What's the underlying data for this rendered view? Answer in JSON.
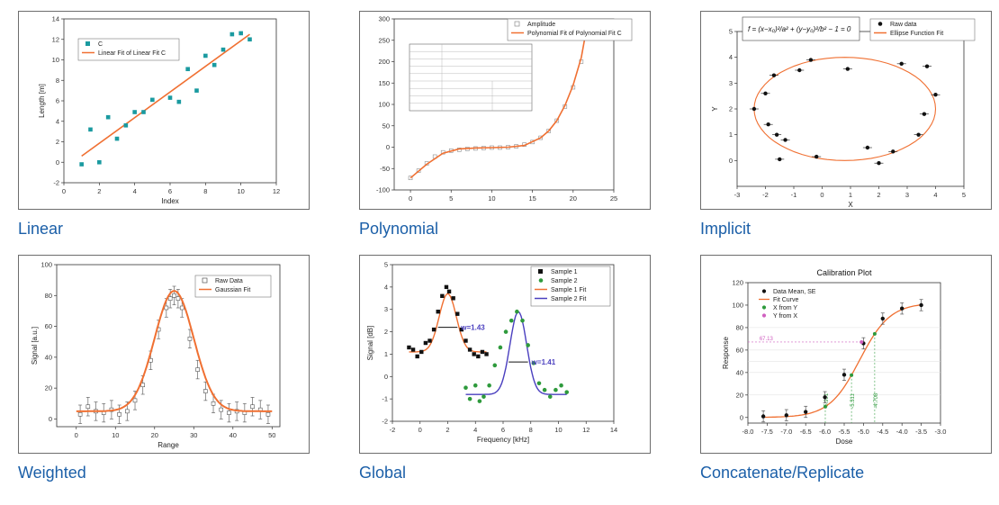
{
  "colors": {
    "caption": "#1b5fa8",
    "fit": "#f07032",
    "sq": "#1a9aa0",
    "black": "#111111",
    "green": "#2e9a3c",
    "purple": "#4a3fbf",
    "grey": "#8c8c8c",
    "pink": "#d060c0"
  },
  "captions": [
    "Linear",
    "Polynomial",
    "Implicit",
    "Weighted",
    "Global",
    "Concatenate/Replicate"
  ],
  "chart_data": [
    {
      "type": "scatter",
      "xlabel": "Index",
      "ylabel": "Length [m]",
      "xlim": [
        0,
        12
      ],
      "ylim": [
        -2,
        14
      ],
      "xticks": [
        "0",
        "2",
        "4",
        "6",
        "8",
        "10",
        "12"
      ],
      "yticks": [
        "-2",
        "0",
        "2",
        "4",
        "6",
        "8",
        "10",
        "12",
        "14"
      ],
      "legend": [
        "C",
        "Linear Fit of Linear Fit C"
      ],
      "series": [
        {
          "name": "C",
          "x": [
            1,
            1.5,
            2,
            2.5,
            3,
            3.5,
            4,
            4.5,
            5,
            6,
            6.5,
            7,
            7.5,
            8,
            8.5,
            9,
            9.5,
            10,
            10.5
          ],
          "y": [
            -0.2,
            3.2,
            0.0,
            4.4,
            2.3,
            3.6,
            4.9,
            4.9,
            6.1,
            6.3,
            5.9,
            9.1,
            7.0,
            10.4,
            9.5,
            11.0,
            12.5,
            12.6,
            12.0
          ]
        }
      ],
      "fit": {
        "name": "Linear Fit of Linear Fit C",
        "x": [
          1,
          10.5
        ],
        "y": [
          0.6,
          12.5
        ]
      },
      "legend_position": "top-left"
    },
    {
      "type": "scatter",
      "xlim": [
        -2,
        25
      ],
      "ylim": [
        -100,
        300
      ],
      "xticks": [
        "0",
        "5",
        "10",
        "15",
        "20",
        "25"
      ],
      "yticks": [
        "-100",
        "-50",
        "0",
        "50",
        "100",
        "150",
        "200",
        "250",
        "300"
      ],
      "legend": [
        "Amplitude",
        "Polynomial Fit of Polynomial Fit C"
      ],
      "series": [
        {
          "name": "Amplitude",
          "x": [
            0,
            1,
            2,
            3,
            4,
            5,
            6,
            7,
            8,
            9,
            10,
            11,
            12,
            13,
            14,
            15,
            16,
            17,
            18,
            19,
            20,
            21,
            21.5
          ],
          "y": [
            -72,
            -55,
            -38,
            -22,
            -12,
            -8,
            -6,
            -4,
            -3,
            -2,
            -1,
            -1,
            0,
            2,
            6,
            12,
            22,
            38,
            62,
            95,
            140,
            200,
            255
          ]
        }
      ],
      "fit": {
        "name": "Polynomial Fit of Polynomial Fit C",
        "x": [
          0,
          2,
          4,
          6,
          8,
          10,
          12,
          14,
          16,
          17,
          18,
          19,
          20,
          21,
          21.5
        ],
        "y": [
          -72,
          -40,
          -14,
          -4,
          -2,
          -1,
          0,
          4,
          22,
          38,
          62,
          98,
          145,
          210,
          262
        ]
      },
      "legend_position": "top-right"
    },
    {
      "type": "scatter",
      "xlabel": "X",
      "ylabel": "Y",
      "xlim": [
        -3,
        5
      ],
      "ylim": [
        -1,
        5
      ],
      "xticks": [
        "-3",
        "-2",
        "-1",
        "0",
        "1",
        "2",
        "3",
        "4",
        "5"
      ],
      "yticks": [
        "0",
        "1",
        "2",
        "3",
        "4",
        "5"
      ],
      "legend": [
        "Raw data",
        "Ellipse Function Fit"
      ],
      "series": [
        {
          "name": "Raw data",
          "x": [
            -2.4,
            -2.0,
            -1.7,
            -1.5,
            -1.9,
            -1.6,
            -1.3,
            -0.8,
            -0.4,
            -0.2,
            0.9,
            1.6,
            2.0,
            2.5,
            2.8,
            3.4,
            3.6,
            3.7,
            4.0
          ],
          "y": [
            2.0,
            2.6,
            3.3,
            0.05,
            1.4,
            1.0,
            0.8,
            3.5,
            3.9,
            0.15,
            3.55,
            0.5,
            -0.1,
            0.35,
            3.75,
            1.0,
            1.8,
            3.65,
            2.55
          ]
        }
      ],
      "fit": {
        "name": "Ellipse Function Fit",
        "cx": 0.8,
        "cy": 2.0,
        "rx": 3.2,
        "ry": 2.0
      },
      "legend_position": "top-right"
    },
    {
      "type": "scatter",
      "xlabel": "Range",
      "ylabel": "Signal [a.u.]",
      "xlim": [
        -5,
        52
      ],
      "ylim": [
        -5,
        100
      ],
      "xticks": [
        "0",
        "10",
        "20",
        "30",
        "40",
        "50"
      ],
      "yticks": [
        "0",
        "20",
        "40",
        "60",
        "80",
        "100"
      ],
      "legend": [
        "Raw Data",
        "Gaussian Fit"
      ],
      "series": [
        {
          "name": "Raw Data",
          "x": [
            1,
            3,
            5,
            7,
            9,
            11,
            13,
            15,
            17,
            19,
            21,
            23,
            24,
            25,
            26,
            27,
            29,
            31,
            33,
            35,
            37,
            39,
            41,
            43,
            45,
            47,
            49
          ],
          "y": [
            3,
            8,
            5,
            4,
            6,
            3,
            5,
            12,
            22,
            38,
            58,
            72,
            78,
            80,
            78,
            72,
            52,
            32,
            18,
            10,
            6,
            4,
            5,
            4,
            8,
            6,
            3
          ]
        }
      ],
      "fit": {
        "name": "Gaussian Fit",
        "center": 25,
        "amp": 78,
        "width": 5,
        "base": 5
      },
      "legend_position": "top-right"
    },
    {
      "type": "scatter",
      "xlabel": "Frequency [kHz]",
      "ylabel": "Signal [dB]",
      "xlim": [
        -2,
        14
      ],
      "ylim": [
        -2,
        5
      ],
      "xticks": [
        "-2",
        "0",
        "2",
        "4",
        "6",
        "8",
        "10",
        "12",
        "14"
      ],
      "yticks": [
        "-2",
        "-1",
        "0",
        "1",
        "2",
        "3",
        "4",
        "5"
      ],
      "legend": [
        "Sample 1",
        "Sample 2",
        "Sample 1 Fit",
        "Sample 2 Fit"
      ],
      "annotations": [
        "w=1.43",
        "w=1.41"
      ],
      "series": [
        {
          "name": "Sample 1",
          "x": [
            -0.8,
            -0.5,
            -0.2,
            0.1,
            0.4,
            0.7,
            1.0,
            1.3,
            1.6,
            1.9,
            2.1,
            2.4,
            2.7,
            3.0,
            3.3,
            3.6,
            3.9,
            4.2,
            4.5,
            4.8
          ],
          "y": [
            1.3,
            1.2,
            0.9,
            1.1,
            1.5,
            1.6,
            2.1,
            2.9,
            3.6,
            4.0,
            3.8,
            3.5,
            2.8,
            2.1,
            1.6,
            1.2,
            1.0,
            0.9,
            1.1,
            1.0
          ]
        },
        {
          "name": "Sample 2",
          "x": [
            3.3,
            3.6,
            4.0,
            4.3,
            4.6,
            5.0,
            5.4,
            5.8,
            6.2,
            6.6,
            7.0,
            7.4,
            7.8,
            8.2,
            8.6,
            9.0,
            9.4,
            9.8,
            10.2,
            10.6
          ],
          "y": [
            -0.5,
            -1.0,
            -0.4,
            -1.1,
            -0.9,
            -0.4,
            0.5,
            1.3,
            2.0,
            2.5,
            2.9,
            2.5,
            1.4,
            0.6,
            -0.3,
            -0.6,
            -0.9,
            -0.6,
            -0.4,
            -0.7
          ]
        }
      ],
      "fits": [
        {
          "name": "Sample 1 Fit",
          "center": 2.0,
          "amp": 2.6,
          "sigma": 0.62,
          "base": 1.1
        },
        {
          "name": "Sample 2 Fit",
          "center": 7.1,
          "amp": 3.7,
          "sigma": 0.6,
          "base": -0.8
        }
      ],
      "legend_position": "top-right"
    },
    {
      "type": "scatter",
      "title": "Calibration Plot",
      "xlabel": "Dose",
      "ylabel": "Response",
      "xlim": [
        -8,
        -3
      ],
      "ylim": [
        -5,
        120
      ],
      "xticks": [
        "-8.0",
        "-7.5",
        "-7.0",
        "-6.5",
        "-6.0",
        "-5.5",
        "-5.0",
        "-4.5",
        "-4.0",
        "-3.5",
        "-3.0"
      ],
      "yticks": [
        "0",
        "20",
        "40",
        "60",
        "80",
        "100",
        "120"
      ],
      "legend": [
        "Data Mean, SE",
        "Fit Curve",
        "X from Y",
        "Y from X"
      ],
      "annotations": [
        "67.13",
        "-5.991",
        "-5.311",
        "-4.708"
      ],
      "series": [
        {
          "name": "Data Mean, SE",
          "x": [
            -7.6,
            -7.0,
            -6.5,
            -6.0,
            -5.5,
            -5.0,
            -4.5,
            -4.0,
            -3.5
          ],
          "y": [
            1,
            2,
            5,
            18,
            38,
            66,
            88,
            97,
            100
          ]
        }
      ],
      "fit": {
        "name": "Fit Curve",
        "bottom": 0,
        "top": 102,
        "logec50": -5.1,
        "hill": 1.1
      },
      "x_from_y": [
        -5.991,
        -5.311,
        -4.708
      ],
      "y_from_x": [
        67.13
      ],
      "legend_position": "top-left"
    }
  ]
}
